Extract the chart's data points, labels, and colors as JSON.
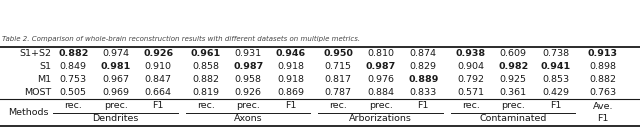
{
  "headers_top": [
    "Dendrites",
    "Axons",
    "Arborizations",
    "Contaminated"
  ],
  "headers_sub": [
    "rec.",
    "prec.",
    "F1"
  ],
  "col_header": "Methods",
  "methods": [
    "MOST",
    "M1",
    "S1",
    "S1+S2"
  ],
  "data": [
    [
      0.505,
      0.969,
      0.664,
      0.819,
      0.926,
      0.869,
      0.787,
      0.884,
      0.833,
      0.571,
      0.361,
      0.429,
      0.763
    ],
    [
      0.753,
      0.967,
      0.847,
      0.882,
      0.958,
      0.918,
      0.817,
      0.976,
      0.889,
      0.792,
      0.925,
      0.853,
      0.882
    ],
    [
      0.849,
      0.981,
      0.91,
      0.858,
      0.987,
      0.918,
      0.715,
      0.987,
      0.829,
      0.904,
      0.982,
      0.941,
      0.898
    ],
    [
      0.882,
      0.974,
      0.926,
      0.961,
      0.931,
      0.946,
      0.95,
      0.81,
      0.874,
      0.938,
      0.609,
      0.738,
      0.913
    ]
  ],
  "bold": [
    [
      false,
      false,
      false,
      false,
      false,
      false,
      false,
      false,
      false,
      false,
      false,
      false,
      false
    ],
    [
      false,
      false,
      false,
      false,
      false,
      false,
      false,
      false,
      true,
      false,
      false,
      false,
      false
    ],
    [
      false,
      true,
      false,
      false,
      true,
      false,
      false,
      true,
      false,
      false,
      true,
      true,
      false
    ],
    [
      true,
      false,
      true,
      true,
      false,
      true,
      true,
      false,
      false,
      true,
      false,
      false,
      true
    ]
  ],
  "bg_color": "#ffffff",
  "text_color": "#1a1a1a",
  "line_color": "#1a1a1a",
  "font_size": 6.8,
  "footer_text": "Table 2. Comparison of whole-brain reconstruction results with different datasets on multiple metrics."
}
